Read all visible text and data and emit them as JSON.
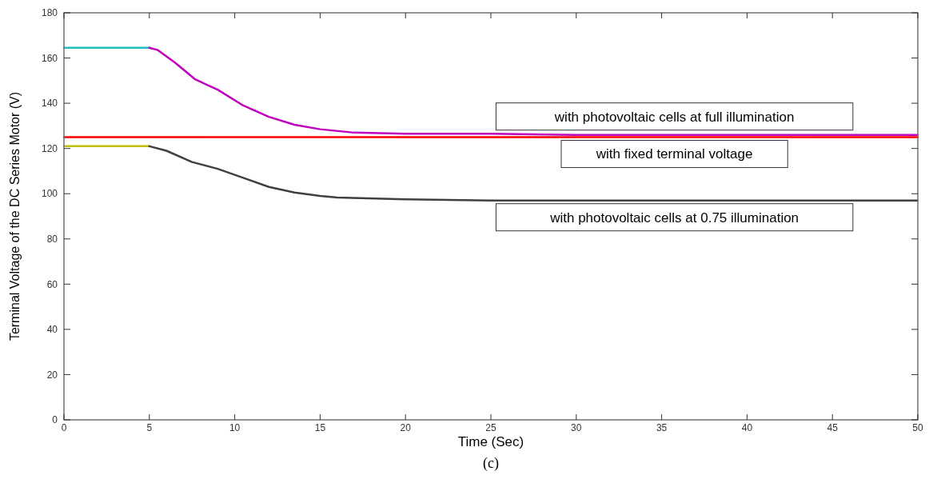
{
  "chart_data": {
    "type": "line",
    "xlabel": "Time (Sec)",
    "ylabel": "Terminal Voltage of the DC Series Motor (V)",
    "xlim": [
      0,
      50
    ],
    "ylim": [
      0,
      180
    ],
    "xticks": [
      0,
      5,
      10,
      15,
      20,
      25,
      30,
      35,
      40,
      45,
      50
    ],
    "yticks": [
      0,
      20,
      40,
      60,
      80,
      100,
      120,
      140,
      160,
      180
    ],
    "grid": false,
    "series": [
      {
        "color": "#1fbfbf",
        "x": [
          0,
          5
        ],
        "values": [
          164.5,
          164.5
        ]
      },
      {
        "name": "with photovoltaic cells at full illumination",
        "color": "#bf00bf",
        "x": [
          5,
          5.5,
          6.5,
          7.7,
          9,
          10.5,
          12,
          13.5,
          15,
          17,
          20,
          25,
          30,
          40,
          50
        ],
        "values": [
          164.5,
          163.5,
          158,
          150.5,
          146,
          139,
          134,
          130.5,
          128.5,
          127,
          126.5,
          126.5,
          126,
          126,
          126
        ]
      },
      {
        "name": "with fixed terminal voltage",
        "color": "#ff0000",
        "x": [
          0,
          50
        ],
        "values": [
          125,
          125
        ]
      },
      {
        "color": "#bfbf00",
        "x": [
          0,
          5
        ],
        "values": [
          121,
          121
        ]
      },
      {
        "name": "with photovoltaic cells at 0.75 illumination",
        "color": "#404040",
        "x": [
          5,
          6,
          7.5,
          9,
          10.5,
          12,
          13.5,
          15,
          16,
          20,
          25,
          30,
          40,
          50
        ],
        "values": [
          121,
          119,
          114,
          111,
          107,
          103,
          100.5,
          99,
          98.3,
          97.5,
          97,
          97,
          97,
          97
        ]
      }
    ],
    "annotations": [
      "(c)"
    ]
  }
}
